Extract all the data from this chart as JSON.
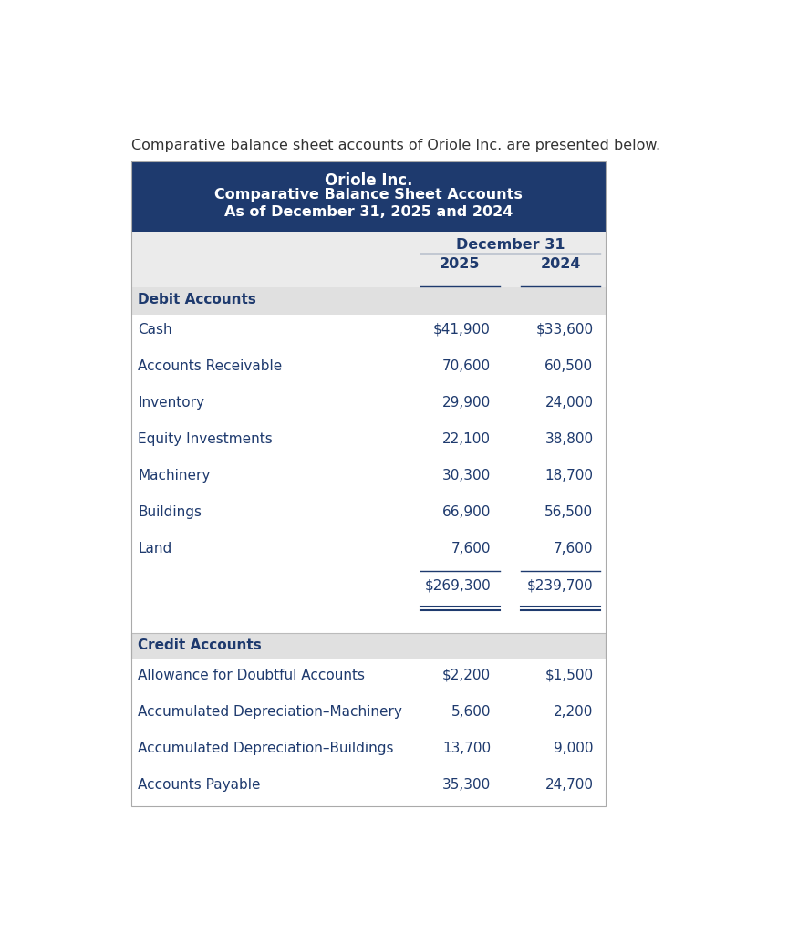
{
  "page_subtitle": "Comparative balance sheet accounts of Oriole Inc. are presented below.",
  "header_bg": "#1e3a6e",
  "header_text_color": "#ffffff",
  "header_line1": "Oriole Inc.",
  "header_line2": "Comparative Balance Sheet Accounts",
  "header_line3": "As of December 31, 2025 and 2024",
  "col_header_bg": "#ebebeb",
  "col_header_label": "December 31",
  "col_2025": "2025",
  "col_2024": "2024",
  "section_bg": "#e0e0e0",
  "text_color": "#1e3a6e",
  "debit_section_label": "Debit Accounts",
  "debit_rows": [
    {
      "label": "Cash",
      "v2025": "$41,900",
      "v2024": "$33,600"
    },
    {
      "label": "Accounts Receivable",
      "v2025": "70,600",
      "v2024": "60,500"
    },
    {
      "label": "Inventory",
      "v2025": "29,900",
      "v2024": "24,000"
    },
    {
      "label": "Equity Investments",
      "v2025": "22,100",
      "v2024": "38,800"
    },
    {
      "label": "Machinery",
      "v2025": "30,300",
      "v2024": "18,700"
    },
    {
      "label": "Buildings",
      "v2025": "66,900",
      "v2024": "56,500"
    },
    {
      "label": "Land",
      "v2025": "7,600",
      "v2024": "7,600"
    }
  ],
  "debit_total_2025": "$269,300",
  "debit_total_2024": "$239,700",
  "credit_section_label": "Credit Accounts",
  "credit_rows": [
    {
      "label": "Allowance for Doubtful Accounts",
      "v2025": "$2,200",
      "v2024": "$1,500"
    },
    {
      "label": "Accumulated Depreciation–Machinery",
      "v2025": "5,600",
      "v2024": "2,200"
    },
    {
      "label": "Accumulated Depreciation–Buildings",
      "v2025": "13,700",
      "v2024": "9,000"
    },
    {
      "label": "Accounts Payable",
      "v2025": "35,300",
      "v2024": "24,700"
    }
  ],
  "fig_bg": "#ffffff",
  "page_bg": "#f5f5f5"
}
